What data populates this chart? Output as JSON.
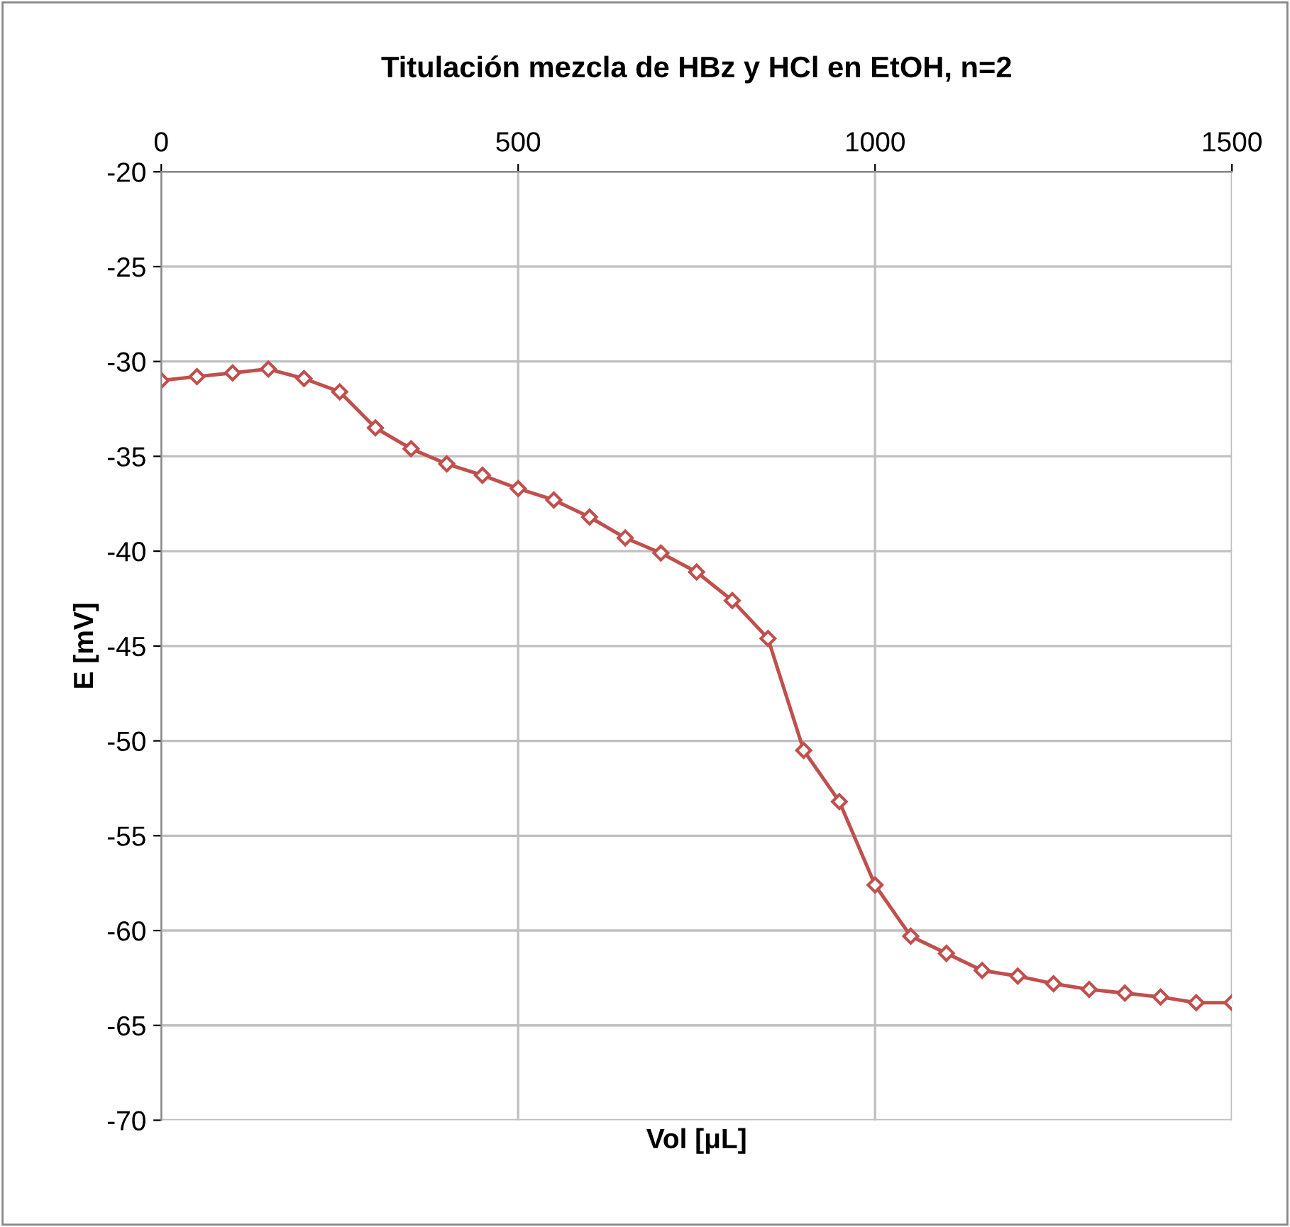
{
  "chart_data": {
    "type": "line",
    "title": "Titulación mezcla de HBz y HCl en EtOH, n=2",
    "xlabel": "Vol [μL]",
    "ylabel": "E [mV]",
    "x": [
      0,
      50,
      100,
      150,
      200,
      250,
      300,
      350,
      400,
      450,
      500,
      550,
      600,
      650,
      700,
      750,
      800,
      850,
      900,
      950,
      1000,
      1050,
      1100,
      1150,
      1200,
      1250,
      1300,
      1350,
      1400,
      1450,
      1500
    ],
    "series": [
      {
        "color": "#c0504d",
        "values": [
          -31.0,
          -30.8,
          -30.6,
          -30.4,
          -30.9,
          -31.6,
          -33.5,
          -34.6,
          -35.4,
          -36.0,
          -36.7,
          -37.3,
          -38.2,
          -39.3,
          -40.1,
          -41.1,
          -42.6,
          -44.6,
          -50.5,
          -53.2,
          -57.6,
          -60.3,
          -61.2,
          -62.1,
          -62.4,
          -62.8,
          -63.1,
          -63.3,
          -63.5,
          -63.8,
          -63.8
        ]
      }
    ],
    "xlim": [
      0,
      1500
    ],
    "xticks": [
      0,
      500,
      1000,
      1500
    ],
    "ylim": [
      -70,
      -20
    ],
    "yticks": [
      -70,
      -65,
      -60,
      -55,
      -50,
      -45,
      -40,
      -35,
      -30,
      -25,
      -20
    ],
    "grid": true,
    "marker": "diamond",
    "line_style": "solid",
    "legend": false
  }
}
